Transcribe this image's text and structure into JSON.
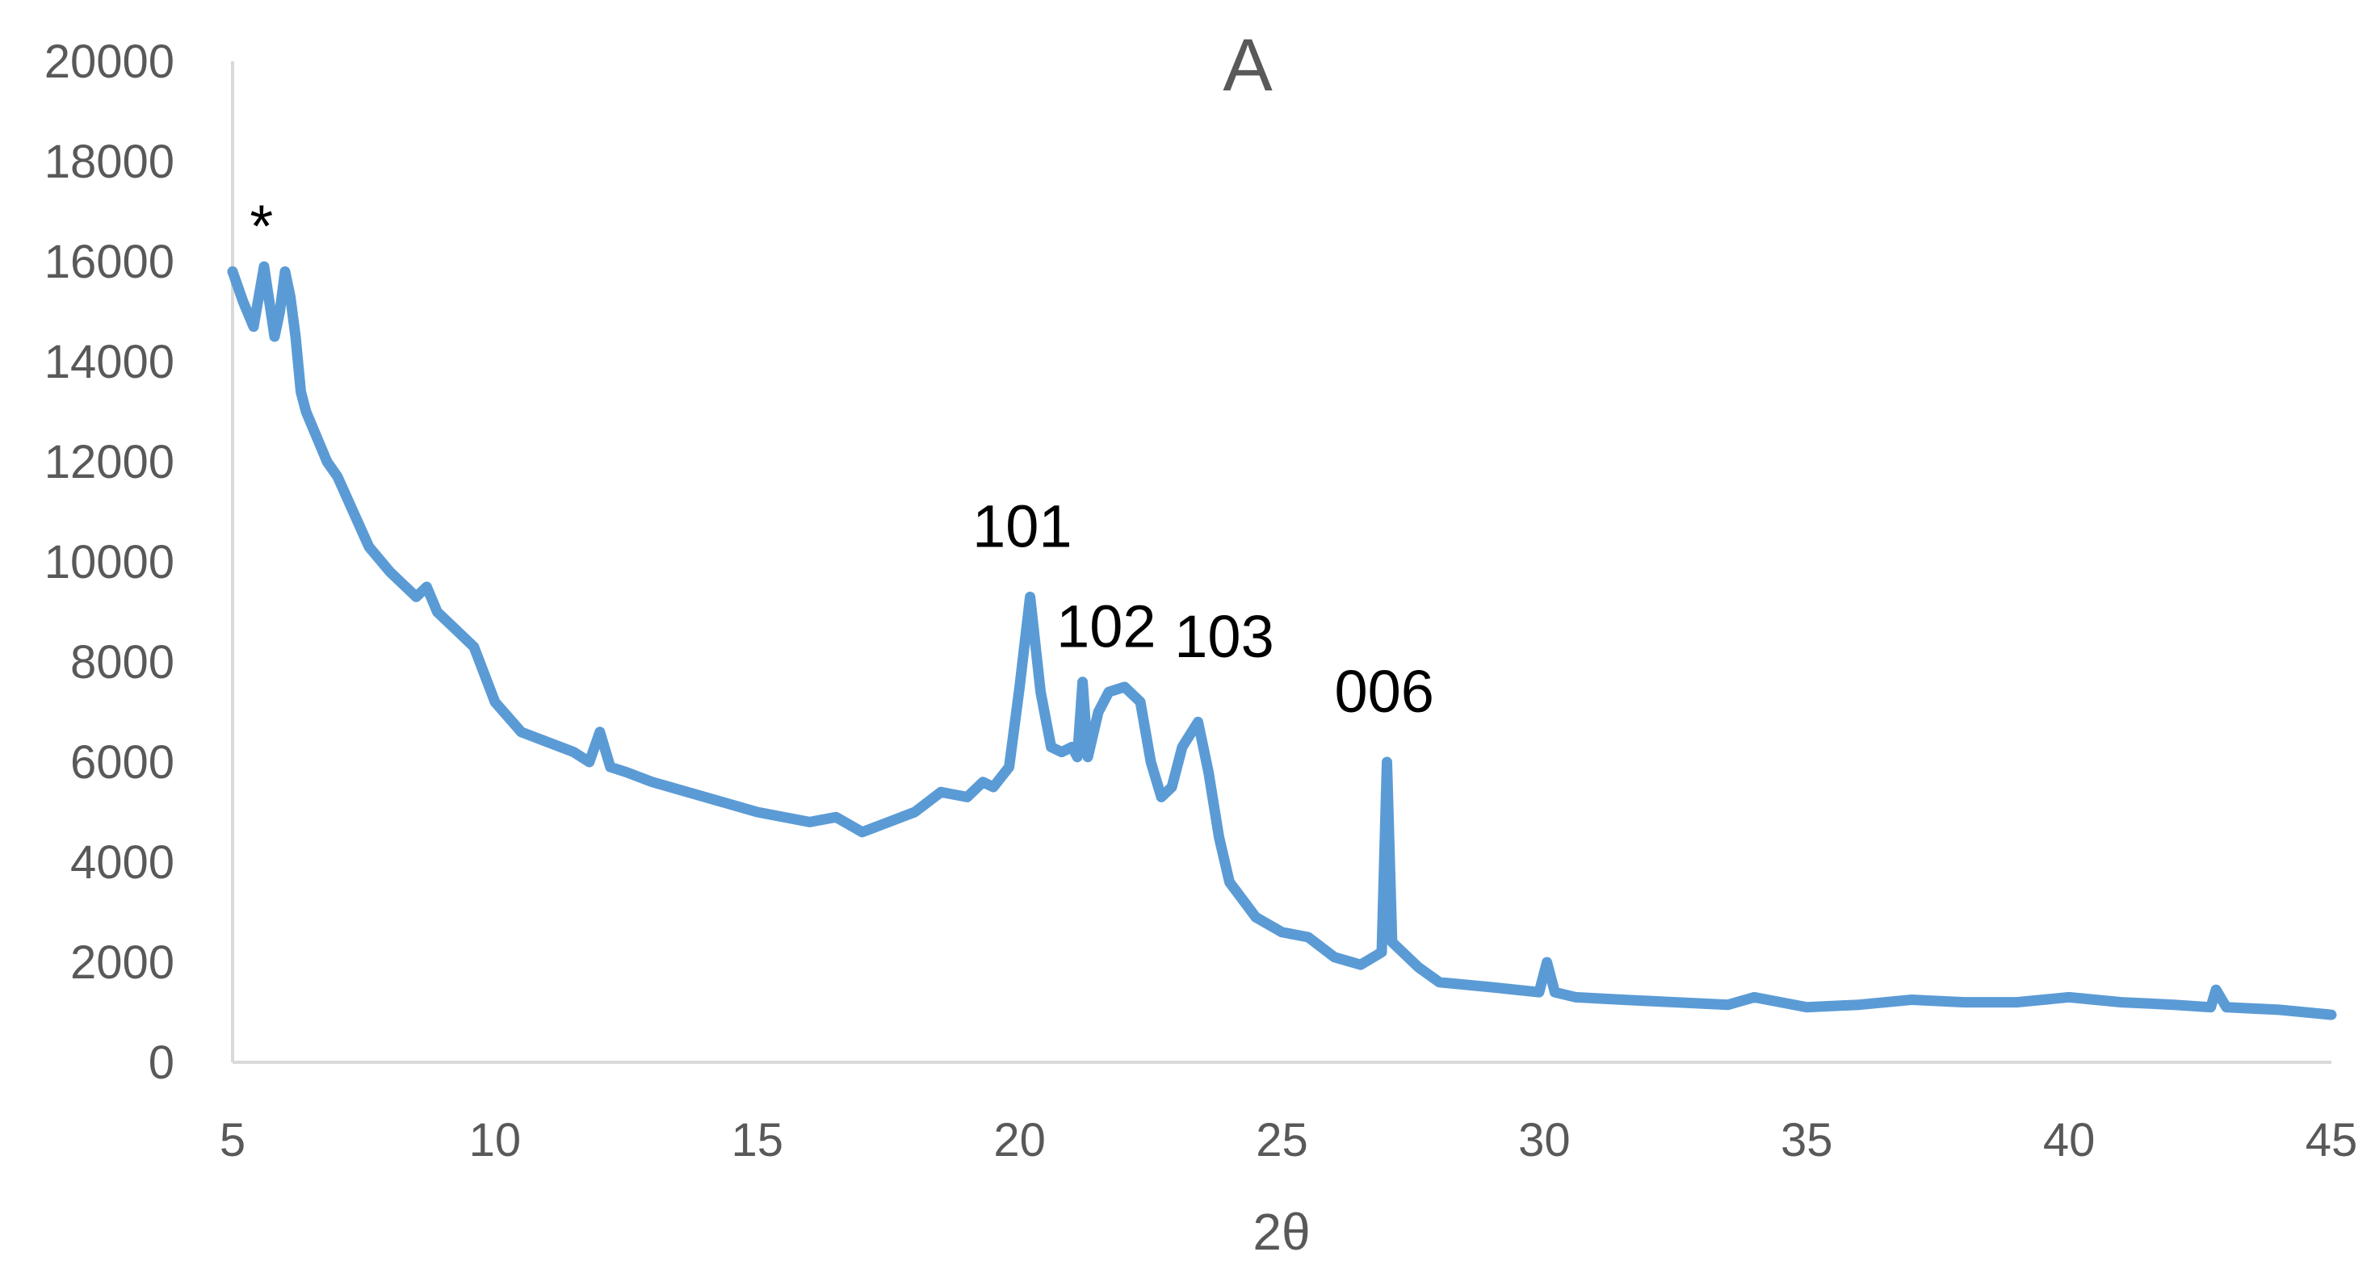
{
  "chart_data": {
    "type": "line",
    "title": "A",
    "xlabel": "2θ",
    "ylabel": "",
    "xlim": [
      5,
      45
    ],
    "ylim": [
      0,
      20000
    ],
    "x_ticks": [
      "5",
      "10",
      "15",
      "20",
      "25",
      "30",
      "35",
      "40",
      "45"
    ],
    "y_ticks": [
      "0",
      "2000",
      "4000",
      "6000",
      "8000",
      "10000",
      "12000",
      "14000",
      "16000",
      "18000",
      "20000"
    ],
    "grid": false,
    "legend": "none",
    "colors": {
      "series": "#5b9bd5",
      "axis": "#d9d9d9",
      "text": "#595959",
      "annotation": "#000000"
    },
    "series": [
      {
        "x": [
          5.0,
          5.2,
          5.4,
          5.5,
          5.6,
          5.8,
          5.9,
          6.0,
          6.1,
          6.2,
          6.3,
          6.4,
          6.6,
          6.8,
          7.0,
          7.3,
          7.6,
          8.0,
          8.5,
          8.7,
          8.9,
          9.2,
          9.6,
          10.0,
          10.5,
          11.0,
          11.5,
          11.8,
          12.0,
          12.2,
          12.5,
          13.0,
          14.0,
          15.0,
          16.0,
          16.5,
          17.0,
          17.5,
          18.0,
          18.5,
          19.0,
          19.3,
          19.5,
          19.8,
          20.0,
          20.2,
          20.4,
          20.6,
          20.8,
          21.0,
          21.1,
          21.2,
          21.3,
          21.5,
          21.7,
          22.0,
          22.3,
          22.5,
          22.7,
          22.9,
          23.1,
          23.4,
          23.6,
          23.8,
          24.0,
          24.5,
          25.0,
          25.5,
          26.0,
          26.5,
          26.9,
          27.0,
          27.1,
          27.3,
          27.6,
          28.0,
          29.0,
          29.9,
          30.05,
          30.2,
          30.6,
          31.5,
          32.5,
          33.5,
          34.0,
          35.0,
          36.0,
          37.0,
          38.0,
          39.0,
          40.0,
          41.0,
          42.0,
          42.7,
          42.8,
          43.0,
          44.0,
          45.0
        ],
        "y": [
          15800,
          15200,
          14700,
          15300,
          15900,
          14500,
          15000,
          15800,
          15300,
          14500,
          13400,
          13000,
          12500,
          12000,
          11700,
          11000,
          10300,
          9800,
          9300,
          9500,
          9000,
          8700,
          8300,
          7200,
          6600,
          6400,
          6200,
          6000,
          6600,
          5900,
          5800,
          5600,
          5300,
          5000,
          4800,
          4900,
          4600,
          4800,
          5000,
          5400,
          5300,
          5600,
          5500,
          5900,
          7500,
          9300,
          7400,
          6300,
          6200,
          6300,
          6100,
          7600,
          6100,
          7000,
          7400,
          7500,
          7200,
          6000,
          5300,
          5500,
          6300,
          6800,
          5800,
          4500,
          3600,
          2900,
          2600,
          2500,
          2100,
          1950,
          2200,
          6000,
          2400,
          2200,
          1900,
          1600,
          1500,
          1400,
          2000,
          1400,
          1300,
          1250,
          1200,
          1150,
          1300,
          1100,
          1150,
          1250,
          1200,
          1200,
          1300,
          1200,
          1150,
          1100,
          1450,
          1100,
          1050,
          950
        ]
      }
    ],
    "annotations": [
      {
        "text": "*",
        "x": 5.55,
        "y": 16300
      },
      {
        "text": "101",
        "x": 20.05,
        "y": 10300
      },
      {
        "text": "102",
        "x": 21.65,
        "y": 8300
      },
      {
        "text": "103",
        "x": 23.9,
        "y": 8100
      },
      {
        "text": "006",
        "x": 26.95,
        "y": 7000
      }
    ]
  }
}
